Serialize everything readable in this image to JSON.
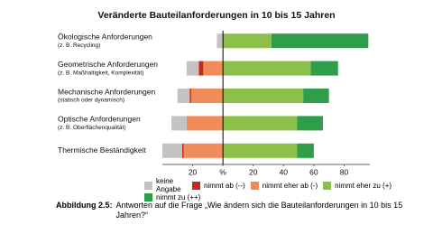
{
  "chart_data": {
    "type": "diverging-bar",
    "title": "Veränderte Bauteilanforderungen in 10 bis 15 Jahren",
    "categories": [
      "Ökologische Anforderungen",
      "Geometrische Anforderungen",
      "Mechanische Anforderungen",
      "Optische Anforderungen",
      "Thermische Beständigkeit"
    ],
    "category_notes": [
      "(z. B. Recycling)",
      "(z. B. Maßhaltigkeit, Komplexität)",
      "(statisch oder dynamisch)",
      "(z. B. Oberflächenqualität)",
      null
    ],
    "series": [
      {
        "name": "keine Angabe",
        "color": "#c3c3c3",
        "values": [
          -4,
          -8,
          -8,
          -10,
          -13
        ]
      },
      {
        "name": "nimmt ab (--)",
        "color": "#c8281e",
        "values": [
          0,
          -3,
          -1,
          0,
          -1
        ]
      },
      {
        "name": "nimmt eher ab (-)",
        "color": "#f08c5a",
        "values": [
          0,
          -13,
          -21,
          -24,
          -26
        ]
      },
      {
        "name": "nimmt eher zu (+)",
        "color": "#8cc04a",
        "values": [
          32,
          58,
          53,
          49,
          49
        ]
      },
      {
        "name": "nimmt zu (++)",
        "color": "#2e9e4a",
        "values": [
          64,
          18,
          17,
          17,
          11
        ]
      }
    ],
    "xlim": [
      -40,
      97
    ],
    "xticks": [
      {
        "value": -20,
        "label": "20"
      },
      {
        "value": 0,
        "label": "%"
      },
      20,
      40,
      60,
      80
    ],
    "caption_label": "Abbildung 2.5:",
    "caption": "Antworten auf die Frage „Wie ändern sich die Bauteilanforderungen in 10 bis 15 Jahren?“"
  }
}
